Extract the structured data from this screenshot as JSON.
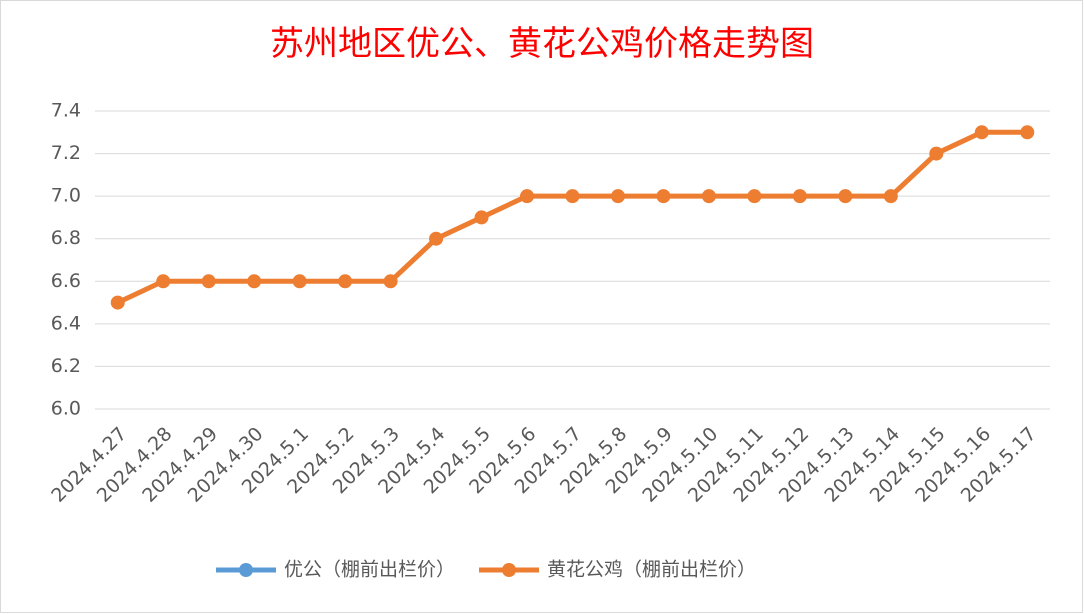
{
  "chart_data": {
    "type": "line",
    "title": "苏州地区优公、黄花公鸡价格走势图",
    "categories": [
      "2024.4.27",
      "2024.4.28",
      "2024.4.29",
      "2024.4.30",
      "2024.5.1",
      "2024.5.2",
      "2024.5.3",
      "2024.5.4",
      "2024.5.5",
      "2024.5.6",
      "2024.5.7",
      "2024.5.8",
      "2024.5.9",
      "2024.5.10",
      "2024.5.11",
      "2024.5.12",
      "2024.5.13",
      "2024.5.14",
      "2024.5.15",
      "2024.5.16",
      "2024.5.17"
    ],
    "series": [
      {
        "name": "优公（棚前出栏价）",
        "color": "#5b9bd5",
        "values": [
          null,
          null,
          null,
          null,
          null,
          null,
          null,
          null,
          null,
          null,
          null,
          null,
          null,
          null,
          null,
          null,
          null,
          null,
          null,
          null,
          null
        ]
      },
      {
        "name": "黄花公鸡（棚前出栏价）",
        "color": "#ed7d31",
        "values": [
          6.5,
          6.6,
          6.6,
          6.6,
          6.6,
          6.6,
          6.6,
          6.8,
          6.9,
          7.0,
          7.0,
          7.0,
          7.0,
          7.0,
          7.0,
          7.0,
          7.0,
          7.0,
          7.2,
          7.3,
          7.3
        ]
      }
    ],
    "ylim": [
      6.0,
      7.4
    ],
    "yticks": [
      {
        "value": 6.0,
        "label": "6.0"
      },
      {
        "value": 6.2,
        "label": "6.2"
      },
      {
        "value": 6.4,
        "label": "6.4"
      },
      {
        "value": 6.6,
        "label": "6.6"
      },
      {
        "value": 6.8,
        "label": "6.8"
      },
      {
        "value": 7.0,
        "label": "7.0"
      },
      {
        "value": 7.2,
        "label": "7.2"
      },
      {
        "value": 7.4,
        "label": "7.4"
      }
    ],
    "grid": true,
    "legend": "bottom"
  }
}
